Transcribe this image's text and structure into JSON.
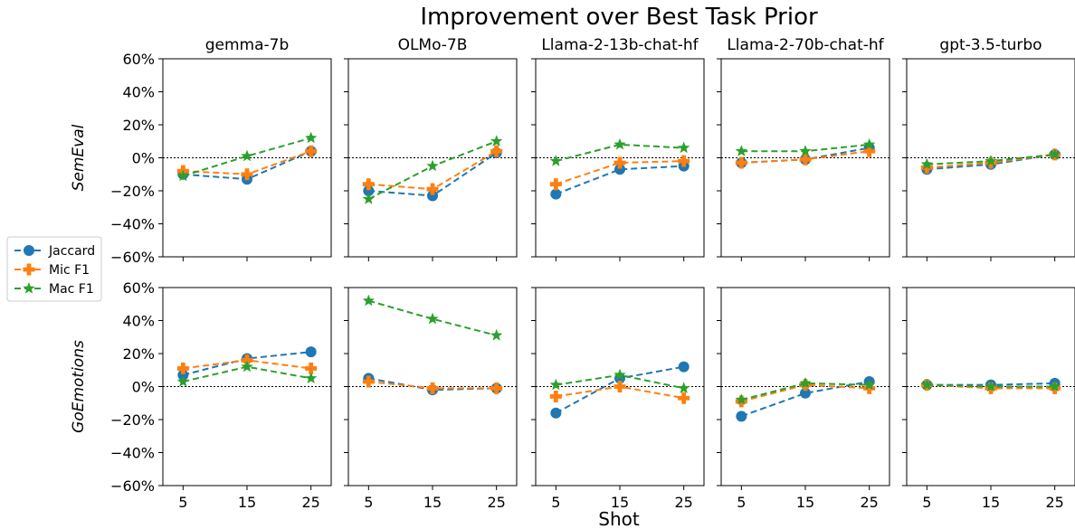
{
  "chart_data": {
    "type": "line",
    "title": "Improvement over Best Task Prior",
    "xlabel": "Shot",
    "x": [
      5,
      15,
      25
    ],
    "ylim": [
      -60,
      60
    ],
    "yticks": [
      -60,
      -40,
      -20,
      0,
      20,
      40,
      60
    ],
    "ytick_labels": [
      "−60%",
      "−40%",
      "−20%",
      "0%",
      "20%",
      "40%",
      "60%"
    ],
    "xtick_labels": [
      "5",
      "15",
      "25"
    ],
    "columns": [
      "gemma-7b",
      "OLMo-7B",
      "Llama-2-13b-chat-hf",
      "Llama-2-70b-chat-hf",
      "gpt-3.5-turbo"
    ],
    "rows": [
      "SemEval",
      "GoEmotions"
    ],
    "legend": {
      "placement": "left",
      "entries": [
        {
          "name": "Jaccard",
          "color": "#1f77b4",
          "marker": "circle"
        },
        {
          "name": "Mic F1",
          "color": "#ff7f0e",
          "marker": "plus"
        },
        {
          "name": "Mac F1",
          "color": "#2ca02c",
          "marker": "star"
        }
      ]
    },
    "reference_line": 0,
    "panels": [
      {
        "row": "SemEval",
        "column": "gemma-7b",
        "series": [
          {
            "name": "Jaccard",
            "values": [
              -10,
              -13,
              4
            ]
          },
          {
            "name": "Mic F1",
            "values": [
              -8,
              -10,
              4
            ]
          },
          {
            "name": "Mac F1",
            "values": [
              -11,
              1,
              12
            ]
          }
        ]
      },
      {
        "row": "SemEval",
        "column": "OLMo-7B",
        "series": [
          {
            "name": "Jaccard",
            "values": [
              -20,
              -23,
              3
            ]
          },
          {
            "name": "Mic F1",
            "values": [
              -16,
              -19,
              4
            ]
          },
          {
            "name": "Mac F1",
            "values": [
              -25,
              -5,
              10
            ]
          }
        ]
      },
      {
        "row": "SemEval",
        "column": "Llama-2-13b-chat-hf",
        "series": [
          {
            "name": "Jaccard",
            "values": [
              -22,
              -7,
              -5
            ]
          },
          {
            "name": "Mic F1",
            "values": [
              -16,
              -3,
              -2
            ]
          },
          {
            "name": "Mac F1",
            "values": [
              -2,
              8,
              6
            ]
          }
        ]
      },
      {
        "row": "SemEval",
        "column": "Llama-2-70b-chat-hf",
        "series": [
          {
            "name": "Jaccard",
            "values": [
              -3,
              -1,
              6
            ]
          },
          {
            "name": "Mic F1",
            "values": [
              -3,
              -1,
              4
            ]
          },
          {
            "name": "Mac F1",
            "values": [
              4,
              4,
              8
            ]
          }
        ]
      },
      {
        "row": "SemEval",
        "column": "gpt-3.5-turbo",
        "series": [
          {
            "name": "Jaccard",
            "values": [
              -7,
              -4,
              2
            ]
          },
          {
            "name": "Mic F1",
            "values": [
              -6,
              -3,
              2
            ]
          },
          {
            "name": "Mac F1",
            "values": [
              -4,
              -2,
              2
            ]
          }
        ]
      },
      {
        "row": "GoEmotions",
        "column": "gemma-7b",
        "series": [
          {
            "name": "Jaccard",
            "values": [
              7,
              17,
              21
            ]
          },
          {
            "name": "Mic F1",
            "values": [
              11,
              16,
              11
            ]
          },
          {
            "name": "Mac F1",
            "values": [
              3,
              12,
              5
            ]
          }
        ]
      },
      {
        "row": "GoEmotions",
        "column": "OLMo-7B",
        "series": [
          {
            "name": "Jaccard",
            "values": [
              5,
              -2,
              -1
            ]
          },
          {
            "name": "Mic F1",
            "values": [
              3,
              -1,
              -1
            ]
          },
          {
            "name": "Mac F1",
            "values": [
              52,
              41,
              31
            ]
          }
        ]
      },
      {
        "row": "GoEmotions",
        "column": "Llama-2-13b-chat-hf",
        "series": [
          {
            "name": "Jaccard",
            "values": [
              -16,
              5,
              12
            ]
          },
          {
            "name": "Mic F1",
            "values": [
              -6,
              0,
              -7
            ]
          },
          {
            "name": "Mac F1",
            "values": [
              1,
              7,
              -1
            ]
          }
        ]
      },
      {
        "row": "GoEmotions",
        "column": "Llama-2-70b-chat-hf",
        "series": [
          {
            "name": "Jaccard",
            "values": [
              -18,
              -4,
              3
            ]
          },
          {
            "name": "Mic F1",
            "values": [
              -9,
              1,
              -1
            ]
          },
          {
            "name": "Mac F1",
            "values": [
              -8,
              2,
              1
            ]
          }
        ]
      },
      {
        "row": "GoEmotions",
        "column": "gpt-3.5-turbo",
        "series": [
          {
            "name": "Jaccard",
            "values": [
              1,
              1,
              2
            ]
          },
          {
            "name": "Mic F1",
            "values": [
              1,
              -1,
              -1
            ]
          },
          {
            "name": "Mac F1",
            "values": [
              1,
              0,
              0
            ]
          }
        ]
      }
    ]
  }
}
